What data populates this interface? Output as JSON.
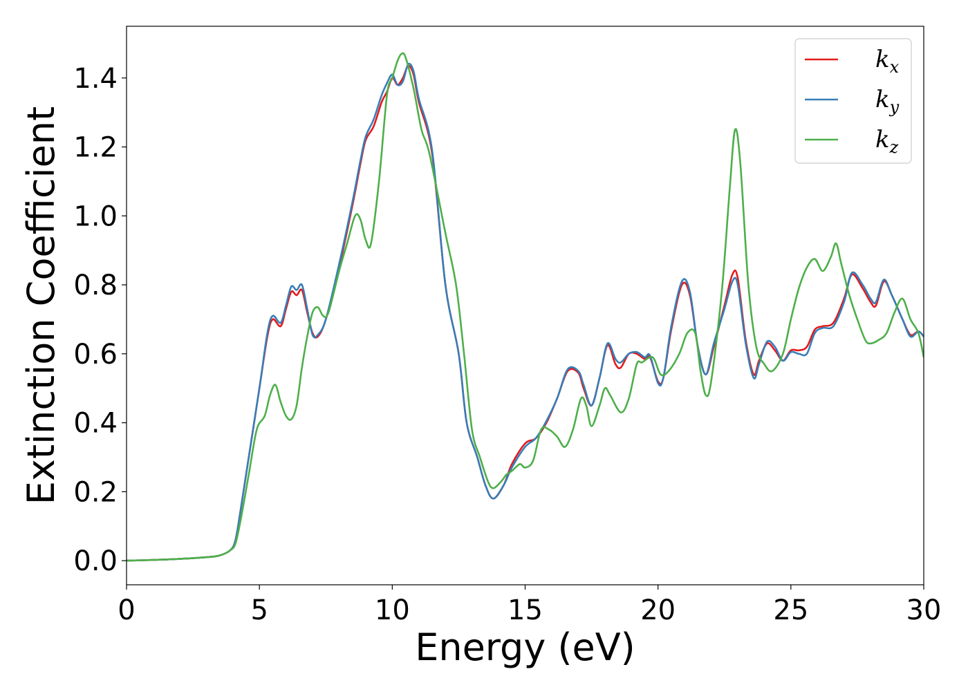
{
  "chart_data": {
    "type": "line",
    "xlabel": "Energy (eV)",
    "ylabel": "Extinction Coefficient",
    "xlim": [
      0,
      30
    ],
    "ylim": [
      -0.07,
      1.55
    ],
    "xticks": [
      0,
      5,
      10,
      15,
      20,
      25,
      30
    ],
    "xtick_labels": [
      "0",
      "5",
      "10",
      "15",
      "20",
      "25",
      "30"
    ],
    "yticks": [
      0.0,
      0.2,
      0.4,
      0.6,
      0.8,
      1.0,
      1.2,
      1.4
    ],
    "ytick_labels": [
      "0.0",
      "0.2",
      "0.4",
      "0.6",
      "0.8",
      "1.0",
      "1.2",
      "1.4"
    ],
    "grid": false,
    "legend_position": "top-right",
    "series": [
      {
        "name": "k_x",
        "symbol": "k",
        "subscript": "x",
        "color": "#e41a1c",
        "points": [
          [
            0,
            0.0
          ],
          [
            1,
            0.002
          ],
          [
            2,
            0.005
          ],
          [
            3,
            0.01
          ],
          [
            3.5,
            0.015
          ],
          [
            3.9,
            0.03
          ],
          [
            4.1,
            0.06
          ],
          [
            4.3,
            0.15
          ],
          [
            4.6,
            0.3
          ],
          [
            5.0,
            0.5
          ],
          [
            5.3,
            0.65
          ],
          [
            5.5,
            0.7
          ],
          [
            5.8,
            0.68
          ],
          [
            6.0,
            0.73
          ],
          [
            6.2,
            0.78
          ],
          [
            6.4,
            0.77
          ],
          [
            6.6,
            0.785
          ],
          [
            6.8,
            0.72
          ],
          [
            7.0,
            0.66
          ],
          [
            7.2,
            0.65
          ],
          [
            7.5,
            0.7
          ],
          [
            8.0,
            0.85
          ],
          [
            8.5,
            1.03
          ],
          [
            8.8,
            1.15
          ],
          [
            9.0,
            1.22
          ],
          [
            9.3,
            1.26
          ],
          [
            9.6,
            1.33
          ],
          [
            9.8,
            1.36
          ],
          [
            10.0,
            1.4
          ],
          [
            10.2,
            1.38
          ],
          [
            10.4,
            1.4
          ],
          [
            10.6,
            1.435
          ],
          [
            10.8,
            1.41
          ],
          [
            11.0,
            1.33
          ],
          [
            11.5,
            1.18
          ],
          [
            12.0,
            0.8
          ],
          [
            12.5,
            0.6
          ],
          [
            12.8,
            0.4
          ],
          [
            13.2,
            0.3
          ],
          [
            13.5,
            0.22
          ],
          [
            13.8,
            0.18
          ],
          [
            14.2,
            0.22
          ],
          [
            14.5,
            0.28
          ],
          [
            15.0,
            0.34
          ],
          [
            15.4,
            0.355
          ],
          [
            15.8,
            0.4
          ],
          [
            16.2,
            0.47
          ],
          [
            16.6,
            0.55
          ],
          [
            17.0,
            0.545
          ],
          [
            17.2,
            0.5
          ],
          [
            17.5,
            0.45
          ],
          [
            17.8,
            0.53
          ],
          [
            18.1,
            0.625
          ],
          [
            18.4,
            0.57
          ],
          [
            18.6,
            0.56
          ],
          [
            18.9,
            0.6
          ],
          [
            19.2,
            0.6
          ],
          [
            19.5,
            0.585
          ],
          [
            19.7,
            0.59
          ],
          [
            20.0,
            0.52
          ],
          [
            20.2,
            0.53
          ],
          [
            20.5,
            0.67
          ],
          [
            20.9,
            0.8
          ],
          [
            21.2,
            0.77
          ],
          [
            21.5,
            0.62
          ],
          [
            21.8,
            0.54
          ],
          [
            22.1,
            0.62
          ],
          [
            22.5,
            0.74
          ],
          [
            22.8,
            0.83
          ],
          [
            23.0,
            0.82
          ],
          [
            23.3,
            0.64
          ],
          [
            23.6,
            0.54
          ],
          [
            23.8,
            0.58
          ],
          [
            24.1,
            0.63
          ],
          [
            24.4,
            0.61
          ],
          [
            24.7,
            0.58
          ],
          [
            25.0,
            0.61
          ],
          [
            25.3,
            0.61
          ],
          [
            25.6,
            0.62
          ],
          [
            25.9,
            0.67
          ],
          [
            26.2,
            0.68
          ],
          [
            26.6,
            0.69
          ],
          [
            27.0,
            0.76
          ],
          [
            27.3,
            0.83
          ],
          [
            27.7,
            0.79
          ],
          [
            28.0,
            0.75
          ],
          [
            28.2,
            0.74
          ],
          [
            28.5,
            0.81
          ],
          [
            28.8,
            0.77
          ],
          [
            29.2,
            0.7
          ],
          [
            29.5,
            0.655
          ],
          [
            29.8,
            0.665
          ],
          [
            30.0,
            0.65
          ]
        ]
      },
      {
        "name": "k_y",
        "symbol": "k",
        "subscript": "y",
        "color": "#377eb8",
        "points": [
          [
            0,
            0.0
          ],
          [
            1,
            0.002
          ],
          [
            2,
            0.005
          ],
          [
            3,
            0.01
          ],
          [
            3.5,
            0.015
          ],
          [
            3.9,
            0.03
          ],
          [
            4.1,
            0.06
          ],
          [
            4.3,
            0.15
          ],
          [
            4.6,
            0.3
          ],
          [
            5.0,
            0.5
          ],
          [
            5.3,
            0.66
          ],
          [
            5.5,
            0.71
          ],
          [
            5.8,
            0.69
          ],
          [
            6.0,
            0.74
          ],
          [
            6.2,
            0.795
          ],
          [
            6.4,
            0.785
          ],
          [
            6.6,
            0.8
          ],
          [
            6.8,
            0.73
          ],
          [
            7.0,
            0.655
          ],
          [
            7.2,
            0.655
          ],
          [
            7.5,
            0.7
          ],
          [
            8.0,
            0.86
          ],
          [
            8.5,
            1.04
          ],
          [
            8.8,
            1.16
          ],
          [
            9.0,
            1.23
          ],
          [
            9.3,
            1.28
          ],
          [
            9.6,
            1.35
          ],
          [
            9.8,
            1.385
          ],
          [
            10.0,
            1.41
          ],
          [
            10.2,
            1.38
          ],
          [
            10.4,
            1.39
          ],
          [
            10.6,
            1.44
          ],
          [
            10.8,
            1.42
          ],
          [
            11.0,
            1.34
          ],
          [
            11.5,
            1.19
          ],
          [
            12.0,
            0.8
          ],
          [
            12.5,
            0.6
          ],
          [
            12.8,
            0.4
          ],
          [
            13.2,
            0.3
          ],
          [
            13.5,
            0.22
          ],
          [
            13.8,
            0.18
          ],
          [
            14.2,
            0.22
          ],
          [
            14.5,
            0.27
          ],
          [
            15.0,
            0.33
          ],
          [
            15.4,
            0.355
          ],
          [
            15.8,
            0.405
          ],
          [
            16.2,
            0.47
          ],
          [
            16.6,
            0.555
          ],
          [
            17.0,
            0.55
          ],
          [
            17.2,
            0.51
          ],
          [
            17.5,
            0.45
          ],
          [
            17.8,
            0.53
          ],
          [
            18.1,
            0.63
          ],
          [
            18.4,
            0.585
          ],
          [
            18.6,
            0.575
          ],
          [
            18.9,
            0.6
          ],
          [
            19.2,
            0.605
          ],
          [
            19.5,
            0.59
          ],
          [
            19.7,
            0.595
          ],
          [
            20.0,
            0.515
          ],
          [
            20.2,
            0.53
          ],
          [
            20.5,
            0.68
          ],
          [
            20.9,
            0.81
          ],
          [
            21.2,
            0.78
          ],
          [
            21.5,
            0.62
          ],
          [
            21.8,
            0.54
          ],
          [
            22.1,
            0.63
          ],
          [
            22.5,
            0.73
          ],
          [
            22.8,
            0.81
          ],
          [
            23.0,
            0.8
          ],
          [
            23.3,
            0.63
          ],
          [
            23.6,
            0.53
          ],
          [
            23.8,
            0.57
          ],
          [
            24.1,
            0.635
          ],
          [
            24.4,
            0.62
          ],
          [
            24.7,
            0.58
          ],
          [
            25.0,
            0.605
          ],
          [
            25.3,
            0.6
          ],
          [
            25.6,
            0.6
          ],
          [
            25.9,
            0.66
          ],
          [
            26.2,
            0.675
          ],
          [
            26.6,
            0.68
          ],
          [
            27.0,
            0.75
          ],
          [
            27.3,
            0.835
          ],
          [
            27.7,
            0.8
          ],
          [
            28.0,
            0.76
          ],
          [
            28.2,
            0.75
          ],
          [
            28.5,
            0.815
          ],
          [
            28.8,
            0.77
          ],
          [
            29.2,
            0.7
          ],
          [
            29.5,
            0.65
          ],
          [
            29.8,
            0.665
          ],
          [
            30.0,
            0.65
          ]
        ]
      },
      {
        "name": "k_z",
        "symbol": "k",
        "subscript": "z",
        "color": "#4daf4a",
        "points": [
          [
            0,
            0.0
          ],
          [
            1,
            0.002
          ],
          [
            2,
            0.005
          ],
          [
            3,
            0.01
          ],
          [
            3.5,
            0.015
          ],
          [
            3.9,
            0.03
          ],
          [
            4.1,
            0.05
          ],
          [
            4.3,
            0.12
          ],
          [
            4.6,
            0.25
          ],
          [
            4.9,
            0.38
          ],
          [
            5.2,
            0.42
          ],
          [
            5.4,
            0.48
          ],
          [
            5.6,
            0.51
          ],
          [
            5.8,
            0.46
          ],
          [
            6.0,
            0.42
          ],
          [
            6.2,
            0.41
          ],
          [
            6.4,
            0.45
          ],
          [
            6.6,
            0.56
          ],
          [
            6.8,
            0.65
          ],
          [
            7.0,
            0.72
          ],
          [
            7.2,
            0.735
          ],
          [
            7.4,
            0.71
          ],
          [
            7.6,
            0.72
          ],
          [
            8.0,
            0.84
          ],
          [
            8.3,
            0.92
          ],
          [
            8.6,
            1.0
          ],
          [
            8.8,
            0.99
          ],
          [
            9.0,
            0.93
          ],
          [
            9.2,
            0.92
          ],
          [
            9.5,
            1.1
          ],
          [
            9.8,
            1.35
          ],
          [
            10.0,
            1.4
          ],
          [
            10.2,
            1.45
          ],
          [
            10.35,
            1.47
          ],
          [
            10.5,
            1.46
          ],
          [
            10.8,
            1.37
          ],
          [
            11.1,
            1.25
          ],
          [
            11.4,
            1.18
          ],
          [
            12.0,
            0.95
          ],
          [
            12.4,
            0.8
          ],
          [
            12.7,
            0.6
          ],
          [
            13.0,
            0.38
          ],
          [
            13.3,
            0.3
          ],
          [
            13.6,
            0.23
          ],
          [
            13.8,
            0.21
          ],
          [
            14.1,
            0.23
          ],
          [
            14.3,
            0.25
          ],
          [
            14.5,
            0.26
          ],
          [
            14.8,
            0.28
          ],
          [
            15.0,
            0.27
          ],
          [
            15.3,
            0.29
          ],
          [
            15.6,
            0.38
          ],
          [
            15.9,
            0.38
          ],
          [
            16.2,
            0.36
          ],
          [
            16.5,
            0.33
          ],
          [
            16.8,
            0.38
          ],
          [
            17.1,
            0.47
          ],
          [
            17.3,
            0.45
          ],
          [
            17.5,
            0.39
          ],
          [
            17.8,
            0.45
          ],
          [
            18.0,
            0.5
          ],
          [
            18.2,
            0.48
          ],
          [
            18.6,
            0.43
          ],
          [
            18.9,
            0.47
          ],
          [
            19.2,
            0.57
          ],
          [
            19.4,
            0.575
          ],
          [
            19.8,
            0.59
          ],
          [
            20.1,
            0.54
          ],
          [
            20.4,
            0.55
          ],
          [
            20.8,
            0.6
          ],
          [
            21.1,
            0.66
          ],
          [
            21.4,
            0.66
          ],
          [
            21.6,
            0.55
          ],
          [
            21.8,
            0.48
          ],
          [
            22.0,
            0.52
          ],
          [
            22.4,
            0.78
          ],
          [
            22.7,
            1.08
          ],
          [
            22.9,
            1.25
          ],
          [
            23.1,
            1.15
          ],
          [
            23.4,
            0.8
          ],
          [
            23.7,
            0.62
          ],
          [
            24.0,
            0.57
          ],
          [
            24.3,
            0.55
          ],
          [
            24.7,
            0.6
          ],
          [
            25.0,
            0.7
          ],
          [
            25.3,
            0.79
          ],
          [
            25.6,
            0.85
          ],
          [
            25.9,
            0.875
          ],
          [
            26.2,
            0.84
          ],
          [
            26.5,
            0.88
          ],
          [
            26.7,
            0.92
          ],
          [
            26.9,
            0.86
          ],
          [
            27.2,
            0.77
          ],
          [
            27.5,
            0.7
          ],
          [
            27.8,
            0.64
          ],
          [
            28.0,
            0.63
          ],
          [
            28.3,
            0.64
          ],
          [
            28.6,
            0.66
          ],
          [
            28.9,
            0.72
          ],
          [
            29.2,
            0.76
          ],
          [
            29.5,
            0.7
          ],
          [
            29.8,
            0.66
          ],
          [
            30.0,
            0.59
          ]
        ]
      }
    ]
  }
}
